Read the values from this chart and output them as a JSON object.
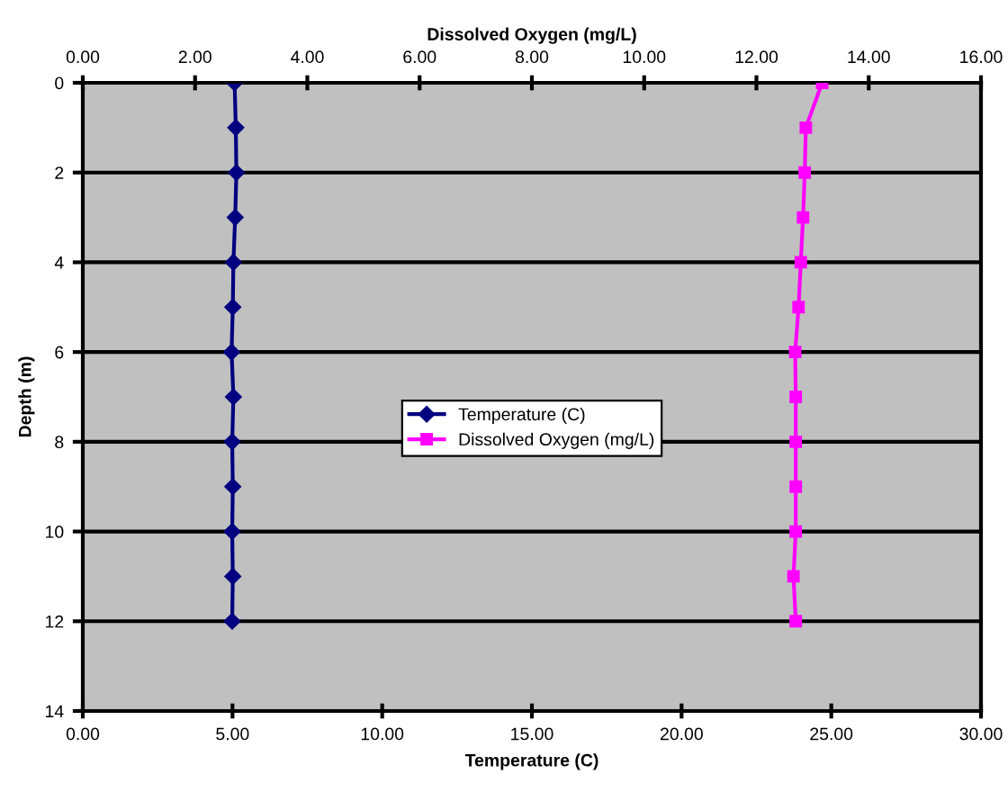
{
  "chart_data": {
    "type": "line",
    "xlabel": "Temperature (C)",
    "x2label": "Dissolved Oxygen (mg/L)",
    "ylabel": "Depth (m)",
    "xlim": [
      0,
      30
    ],
    "xticks": [
      {
        "value": 0,
        "label": "0.00"
      },
      {
        "value": 5,
        "label": "5.00"
      },
      {
        "value": 10,
        "label": "10.00"
      },
      {
        "value": 15,
        "label": "15.00"
      },
      {
        "value": 20,
        "label": "20.00"
      },
      {
        "value": 25,
        "label": "25.00"
      },
      {
        "value": 30,
        "label": "30.00"
      }
    ],
    "x2lim": [
      0,
      16
    ],
    "x2ticks": [
      {
        "value": 0,
        "label": "0.00"
      },
      {
        "value": 2,
        "label": "2.00"
      },
      {
        "value": 4,
        "label": "4.00"
      },
      {
        "value": 6,
        "label": "6.00"
      },
      {
        "value": 8,
        "label": "8.00"
      },
      {
        "value": 10,
        "label": "10.00"
      },
      {
        "value": 12,
        "label": "12.00"
      },
      {
        "value": 14,
        "label": "14.00"
      },
      {
        "value": 16,
        "label": "16.00"
      }
    ],
    "ylim": [
      14,
      0
    ],
    "yticks": [
      0,
      2,
      4,
      6,
      8,
      10,
      12,
      14
    ],
    "grid": "y",
    "legend": "center",
    "series": [
      {
        "name": "Temperature (C)",
        "color": "#000080",
        "marker": "diamond",
        "x": [
          5.07,
          5.11,
          5.13,
          5.09,
          5.03,
          5.01,
          4.97,
          5.03,
          4.99,
          5.01,
          4.99,
          5.01,
          4.99
        ],
        "values": [
          0,
          1,
          2,
          3,
          4,
          5,
          6,
          7,
          8,
          9,
          10,
          11,
          12
        ]
      },
      {
        "name": "Dissolved Oxygen (mg/L)",
        "color": "#ff00ff",
        "marker": "square",
        "axis": "x2",
        "x": [
          13.17,
          12.88,
          12.86,
          12.83,
          12.79,
          12.75,
          12.69,
          12.7,
          12.7,
          12.7,
          12.7,
          12.66,
          12.7
        ],
        "values": [
          0,
          1,
          2,
          3,
          4,
          5,
          6,
          7,
          8,
          9,
          10,
          11,
          12
        ]
      }
    ]
  }
}
